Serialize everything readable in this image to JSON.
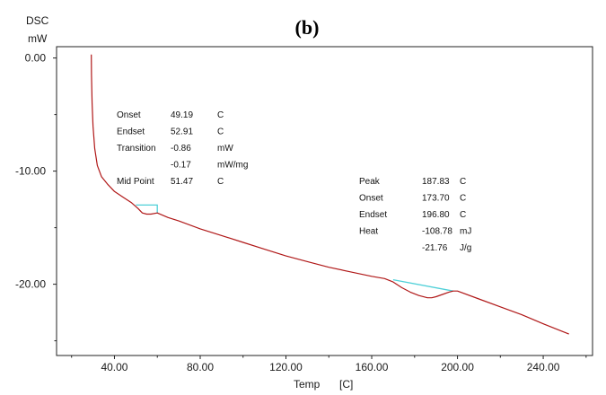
{
  "chart_data": {
    "type": "line",
    "panel_label": "(b)",
    "ylabel_top": "DSC",
    "ylabel_unit": "mW",
    "xlabel": "Temp",
    "xlabel_unit": "[C]",
    "xlim": [
      13,
      263
    ],
    "ylim": [
      -26.3,
      1.0
    ],
    "x_ticks": [
      40,
      80,
      120,
      160,
      200,
      240
    ],
    "x_tick_labels": [
      "40.00",
      "80.00",
      "120.00",
      "160.00",
      "200.00",
      "240.00"
    ],
    "y_ticks": [
      0,
      -10,
      -20
    ],
    "y_tick_labels": [
      "0.00",
      "-10.00",
      "-20.00"
    ],
    "grid": false,
    "series": [
      {
        "color": "#b01818",
        "x": [
          29.2,
          29.3,
          29.6,
          30.0,
          30.8,
          32.0,
          34.0,
          37.0,
          40.0,
          44.0,
          48.0,
          51.0,
          53.0,
          55.0,
          57.0,
          60.0,
          65.0,
          70.0,
          80.0,
          90.0,
          100.0,
          110.0,
          120.0,
          130.0,
          140.0,
          150.0,
          160.0,
          166.0,
          170.0,
          174.0,
          178.0,
          182.0,
          186.0,
          188.0,
          190.0,
          193.0,
          196.0,
          198.0,
          200.0,
          210.0,
          220.0,
          230.0,
          240.0,
          248.0,
          252.0
        ],
        "y": [
          0.3,
          -1.5,
          -4.0,
          -6.0,
          -8.0,
          -9.5,
          -10.5,
          -11.2,
          -11.8,
          -12.3,
          -12.8,
          -13.3,
          -13.7,
          -13.8,
          -13.8,
          -13.7,
          -14.1,
          -14.4,
          -15.1,
          -15.7,
          -16.3,
          -16.9,
          -17.5,
          -18.0,
          -18.5,
          -18.9,
          -19.3,
          -19.5,
          -19.8,
          -20.3,
          -20.7,
          -21.0,
          -21.2,
          -21.2,
          -21.1,
          -20.9,
          -20.7,
          -20.6,
          -20.6,
          -21.3,
          -22.0,
          -22.7,
          -23.5,
          -24.1,
          -24.4
        ]
      }
    ],
    "baselines": [
      {
        "color": "#4fd0d8",
        "x": [
          50,
          60,
          60
        ],
        "y": [
          -13.0,
          -13.0,
          -13.7
        ]
      },
      {
        "color": "#4fd0d8",
        "x": [
          170,
          198
        ],
        "y": [
          -19.6,
          -20.6
        ]
      }
    ],
    "annotations": [
      {
        "rows": [
          {
            "label": "Onset",
            "value": "49.19",
            "unit": "C"
          },
          {
            "label": "Endset",
            "value": "52.91",
            "unit": "C"
          },
          {
            "label": "Transition",
            "value": "-0.86",
            "unit": "mW"
          },
          {
            "label": "",
            "value": "-0.17",
            "unit": "mW/mg"
          },
          {
            "label": "Mid Point",
            "value": "51.47",
            "unit": "C"
          }
        ]
      },
      {
        "rows": [
          {
            "label": "Peak",
            "value": "187.83",
            "unit": "C"
          },
          {
            "label": "Onset",
            "value": "173.70",
            "unit": "C"
          },
          {
            "label": "Endset",
            "value": "196.80",
            "unit": "C"
          },
          {
            "label": "Heat",
            "value": "-108.78",
            "unit": "mJ"
          },
          {
            "label": "",
            "value": "-21.76",
            "unit": "J/g"
          }
        ]
      }
    ]
  }
}
